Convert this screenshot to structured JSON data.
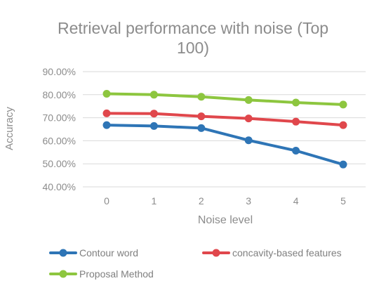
{
  "chart_data": {
    "type": "line",
    "title_lines": [
      "Retrieval performance with noise (Top",
      "100)"
    ],
    "xlabel": "Noise level",
    "ylabel": "Accuracy",
    "x": [
      "0",
      "1",
      "2",
      "3",
      "4",
      "5"
    ],
    "ylim": [
      0.4,
      0.9
    ],
    "yticks": [
      0.4,
      0.5,
      0.6,
      0.7,
      0.8,
      0.9
    ],
    "ytick_labels": [
      "40.00%",
      "50.00%",
      "60.00%",
      "70.00%",
      "80.00%",
      "90.00%"
    ],
    "grid": true,
    "legend_position": "bottom",
    "series": [
      {
        "name": "Contour word",
        "color": "#2e75b6",
        "values": [
          0.668,
          0.664,
          0.655,
          0.602,
          0.557,
          0.497
        ]
      },
      {
        "name": "concavity-based features",
        "color": "#e0474c",
        "values": [
          0.719,
          0.718,
          0.706,
          0.697,
          0.683,
          0.668
        ]
      },
      {
        "name": "Proposal Method",
        "color": "#8dc63f",
        "values": [
          0.804,
          0.8,
          0.791,
          0.777,
          0.766,
          0.757
        ]
      }
    ]
  }
}
